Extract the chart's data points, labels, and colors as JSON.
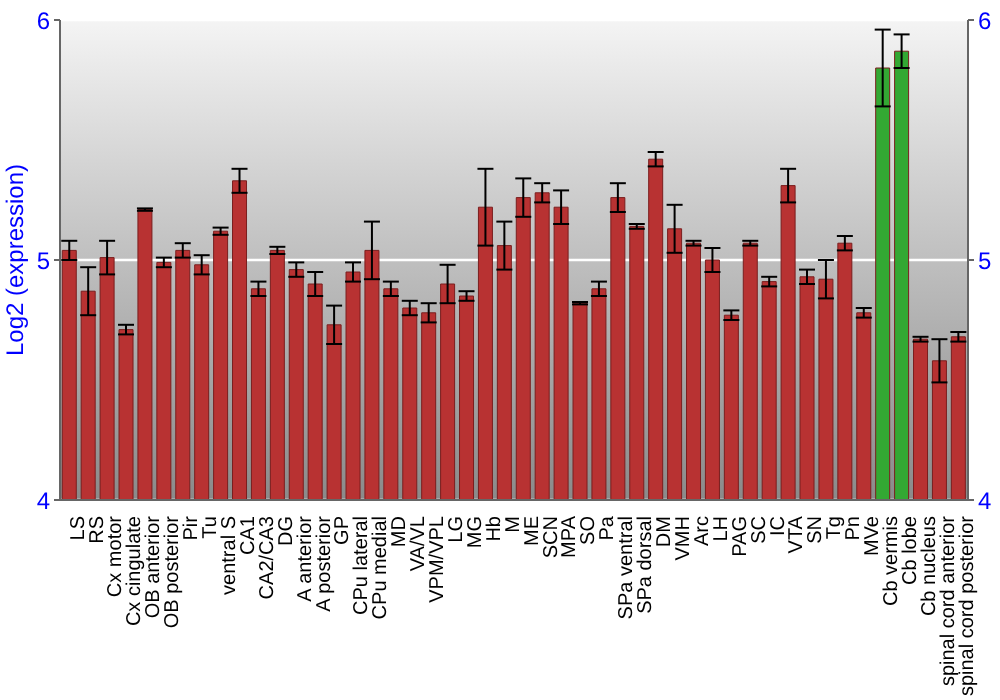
{
  "chart_data": {
    "type": "bar",
    "ylabel": "Log2 (expression)",
    "categories": [
      "LS",
      "RS",
      "Cx motor",
      "Cx cingulate",
      "OB anterior",
      "OB posterior",
      "Pir",
      "Tu",
      "ventral S",
      "CA1",
      "CA2/CA3",
      "DG",
      "A anterior",
      "A posterior",
      "GP",
      "CPu lateral",
      "CPu medial",
      "MD",
      "VA/VL",
      "VPM/VPL",
      "LG",
      "MG",
      "Hb",
      "M",
      "ME",
      "SCN",
      "MPA",
      "SO",
      "Pa",
      "SPa ventral",
      "SPa dorsal",
      "DM",
      "VMH",
      "Arc",
      "LH",
      "PAG",
      "SC",
      "IC",
      "VTA",
      "SN",
      "Tg",
      "Pn",
      "MVe",
      "Cb vermis",
      "Cb lobe",
      "Cb nucleus",
      "spinal cord anterior",
      "spinal cord posterior"
    ],
    "values": [
      5.04,
      4.87,
      5.01,
      4.71,
      5.21,
      4.99,
      5.04,
      4.98,
      5.12,
      5.33,
      4.88,
      5.04,
      4.96,
      4.9,
      4.73,
      4.95,
      5.04,
      4.88,
      4.8,
      4.78,
      4.9,
      4.85,
      5.22,
      5.06,
      5.26,
      5.28,
      5.22,
      4.82,
      4.88,
      5.26,
      5.14,
      5.42,
      5.13,
      5.07,
      5.0,
      4.77,
      5.07,
      4.91,
      5.31,
      4.93,
      4.92,
      5.07,
      4.78,
      5.8,
      5.87,
      4.67,
      4.58,
      4.68
    ],
    "errors": [
      0.04,
      0.1,
      0.07,
      0.02,
      0.005,
      0.02,
      0.03,
      0.04,
      0.015,
      0.05,
      0.03,
      0.015,
      0.03,
      0.05,
      0.08,
      0.04,
      0.12,
      0.03,
      0.03,
      0.04,
      0.08,
      0.02,
      0.16,
      0.1,
      0.08,
      0.04,
      0.07,
      0.005,
      0.03,
      0.06,
      0.01,
      0.03,
      0.1,
      0.01,
      0.05,
      0.02,
      0.01,
      0.02,
      0.07,
      0.03,
      0.08,
      0.03,
      0.02,
      0.16,
      0.07,
      0.01,
      0.09,
      0.02
    ],
    "colors": [
      "#b83232",
      "#b83232",
      "#b83232",
      "#b83232",
      "#b83232",
      "#b83232",
      "#b83232",
      "#b83232",
      "#b83232",
      "#b83232",
      "#b83232",
      "#b83232",
      "#b83232",
      "#b83232",
      "#b83232",
      "#b83232",
      "#b83232",
      "#b83232",
      "#b83232",
      "#b83232",
      "#b83232",
      "#b83232",
      "#b83232",
      "#b83232",
      "#b83232",
      "#b83232",
      "#b83232",
      "#b83232",
      "#b83232",
      "#b83232",
      "#b83232",
      "#b83232",
      "#b83232",
      "#b83232",
      "#b83232",
      "#b83232",
      "#b83232",
      "#b83232",
      "#b83232",
      "#b83232",
      "#b83232",
      "#b83232",
      "#b83232",
      "#33a833",
      "#33a833",
      "#b83232",
      "#b83232",
      "#b83232"
    ],
    "ylim": [
      4,
      6
    ],
    "yticks": [
      4,
      5,
      6
    ],
    "y2lim": [
      4,
      6
    ],
    "y2ticks": [
      4,
      5,
      6
    ],
    "grid": "y"
  }
}
